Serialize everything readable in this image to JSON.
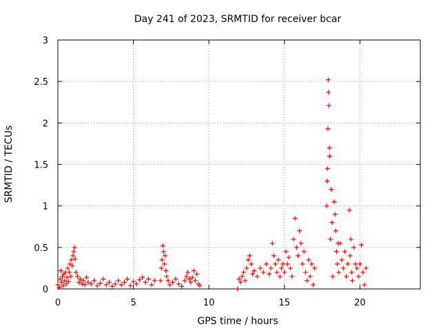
{
  "chart_data": {
    "type": "scatter",
    "title": "Day 241 of 2023, SRMTID for receiver bcar",
    "xlabel": "GPS time / hours",
    "ylabel": "SRMTID / TECUs",
    "xlim": [
      0,
      24
    ],
    "ylim": [
      0,
      3
    ],
    "xticks": [
      0,
      5,
      10,
      15,
      20
    ],
    "xtick_labels": [
      "0",
      "5",
      "10",
      "15",
      "20"
    ],
    "yticks": [
      0,
      0.5,
      1,
      1.5,
      2,
      2.5,
      3
    ],
    "ytick_labels": [
      "0",
      "0.5",
      "1",
      "1.5",
      "2",
      "2.5",
      "3"
    ],
    "grid": true,
    "marker": "+",
    "color": "#ff0000",
    "series": [
      {
        "name": "SRMTID",
        "x": [
          0.0,
          0.1,
          0.15,
          0.2,
          0.25,
          0.3,
          0.35,
          0.4,
          0.45,
          0.5,
          0.55,
          0.6,
          0.65,
          0.7,
          0.75,
          0.8,
          0.85,
          0.9,
          0.95,
          1.0,
          1.05,
          1.1,
          1.15,
          1.2,
          1.3,
          1.4,
          1.5,
          1.6,
          1.7,
          1.8,
          1.9,
          2.0,
          2.2,
          2.4,
          2.6,
          2.8,
          3.0,
          3.2,
          3.4,
          3.6,
          3.8,
          4.0,
          4.2,
          4.4,
          4.6,
          4.8,
          5.0,
          5.2,
          5.4,
          5.6,
          5.8,
          6.0,
          6.2,
          6.4,
          6.8,
          6.85,
          6.9,
          6.95,
          7.0,
          7.05,
          7.1,
          7.15,
          7.2,
          7.3,
          7.4,
          7.6,
          7.8,
          8.0,
          8.2,
          8.4,
          8.5,
          8.6,
          8.7,
          8.8,
          8.9,
          9.0,
          9.1,
          9.2,
          9.3,
          9.4,
          11.9,
          12.0,
          12.1,
          12.2,
          12.3,
          12.4,
          12.5,
          12.6,
          12.7,
          12.8,
          12.9,
          13.0,
          13.2,
          13.4,
          13.6,
          13.8,
          14.0,
          14.1,
          14.2,
          14.3,
          14.4,
          14.5,
          14.6,
          14.7,
          14.8,
          14.9,
          15.0,
          15.1,
          15.2,
          15.3,
          15.4,
          15.5,
          15.6,
          15.7,
          15.8,
          15.9,
          16.0,
          16.1,
          16.2,
          16.3,
          16.4,
          16.5,
          16.6,
          16.7,
          16.8,
          16.9,
          17.0,
          17.8,
          17.82,
          17.85,
          17.88,
          17.9,
          17.92,
          17.95,
          17.98,
          18.0,
          18.05,
          18.1,
          18.15,
          18.2,
          18.3,
          18.35,
          18.4,
          18.45,
          18.5,
          18.55,
          18.6,
          18.7,
          18.8,
          18.9,
          19.0,
          19.1,
          19.2,
          19.3,
          19.35,
          19.4,
          19.45,
          19.5,
          19.6,
          19.7,
          19.8,
          19.9,
          20.0,
          20.1,
          20.2,
          20.3,
          20.4
        ],
        "y": [
          0.05,
          0.02,
          0.12,
          0.22,
          0.08,
          0.15,
          0.04,
          0.18,
          0.1,
          0.2,
          0.06,
          0.14,
          0.25,
          0.09,
          0.2,
          0.3,
          0.15,
          0.35,
          0.28,
          0.4,
          0.45,
          0.5,
          0.36,
          0.2,
          0.15,
          0.08,
          0.12,
          0.06,
          0.1,
          0.05,
          0.14,
          0.08,
          0.06,
          0.1,
          0.04,
          0.07,
          0.12,
          0.05,
          0.08,
          0.03,
          0.06,
          0.1,
          0.05,
          0.08,
          0.12,
          0.04,
          0.09,
          0.06,
          0.11,
          0.14,
          0.08,
          0.12,
          0.05,
          0.1,
          0.1,
          0.25,
          0.35,
          0.52,
          0.45,
          0.3,
          0.4,
          0.22,
          0.15,
          0.1,
          0.05,
          0.08,
          0.12,
          0.06,
          0.03,
          0.1,
          0.15,
          0.2,
          0.12,
          0.08,
          0.14,
          0.22,
          0.1,
          0.18,
          0.06,
          0.04,
          0.0,
          0.12,
          0.08,
          0.15,
          0.2,
          0.1,
          0.25,
          0.35,
          0.4,
          0.3,
          0.18,
          0.22,
          0.15,
          0.25,
          0.2,
          0.3,
          0.18,
          0.25,
          0.55,
          0.4,
          0.3,
          0.2,
          0.35,
          0.15,
          0.25,
          0.3,
          0.2,
          0.45,
          0.3,
          0.38,
          0.25,
          0.15,
          0.6,
          0.85,
          0.5,
          0.4,
          0.7,
          0.55,
          0.3,
          0.45,
          0.2,
          0.1,
          0.35,
          0.15,
          0.3,
          0.05,
          0.25,
          1.0,
          1.3,
          1.45,
          1.93,
          2.52,
          2.37,
          2.21,
          1.7,
          1.6,
          0.6,
          1.2,
          0.8,
          0.15,
          1.05,
          0.9,
          0.7,
          0.45,
          0.3,
          0.55,
          0.2,
          0.55,
          0.35,
          0.25,
          0.45,
          0.15,
          0.3,
          0.95,
          0.4,
          0.6,
          0.2,
          0.1,
          0.5,
          0.3,
          0.25,
          0.15,
          0.3,
          0.53,
          0.2,
          0.05,
          0.25
        ]
      }
    ]
  }
}
